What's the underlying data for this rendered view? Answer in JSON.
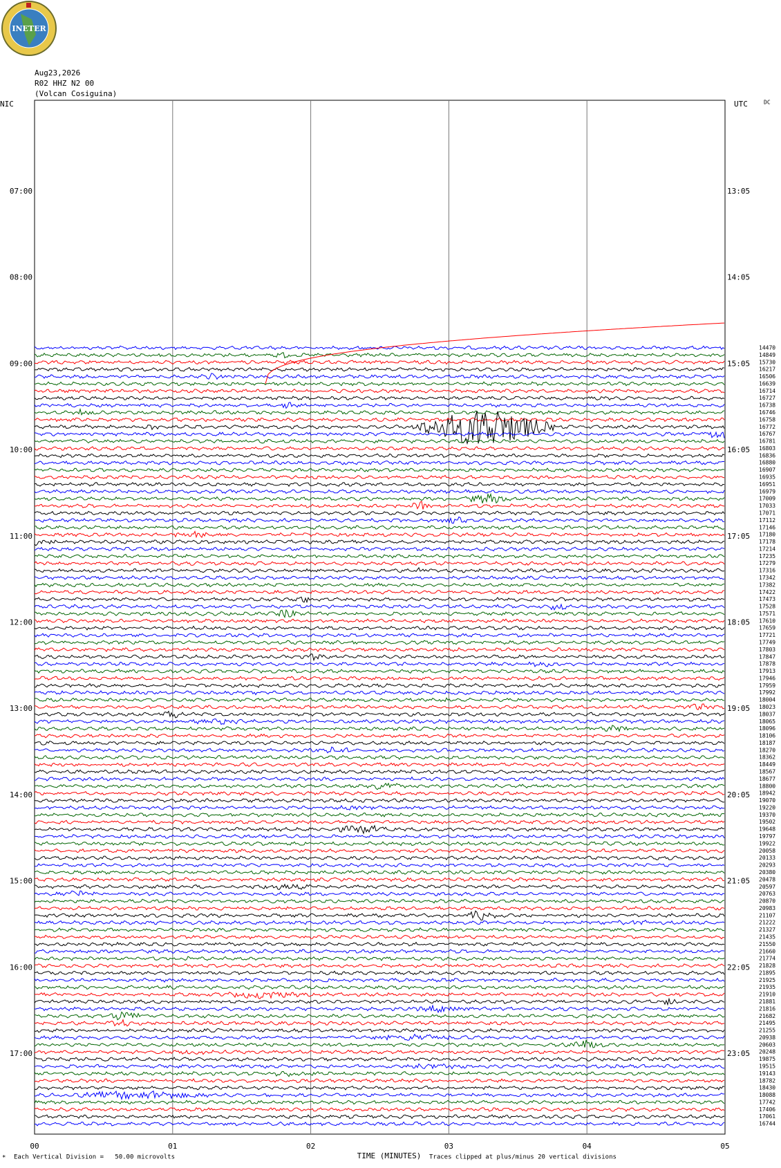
{
  "logo": {
    "text": "INETER"
  },
  "header": {
    "date": "Aug23,2026",
    "station": "R02 HHZ N2 00",
    "location": "(Volcan Cosiguina)"
  },
  "axis": {
    "left_title": "NIC",
    "right_title": "UTC",
    "dc_title": "DC",
    "left_hours": [
      "07:00",
      "08:00",
      "09:00",
      "10:00",
      "11:00",
      "12:00",
      "13:00",
      "14:00",
      "15:00",
      "16:00",
      "17:00"
    ],
    "right_hours": [
      "13:05",
      "14:05",
      "15:05",
      "16:05",
      "17:05",
      "18:05",
      "19:05",
      "20:05",
      "21:05",
      "22:05",
      "23:05"
    ],
    "x_ticks": [
      "00",
      "01",
      "02",
      "03",
      "04",
      "05"
    ],
    "x_title": "TIME (MINUTES)"
  },
  "dc_offsets": [
    14470,
    14849,
    15730,
    16217,
    16506,
    16639,
    16714,
    16727,
    16738,
    16746,
    16758,
    16772,
    16767,
    16781,
    16803,
    16836,
    16880,
    16907,
    16935,
    16951,
    16979,
    17009,
    17033,
    17071,
    17112,
    17146,
    17180,
    17178,
    17214,
    17235,
    17279,
    17316,
    17342,
    17382,
    17422,
    17473,
    17528,
    17571,
    17610,
    17659,
    17721,
    17749,
    17803,
    17847,
    17878,
    17913,
    17946,
    17959,
    17992,
    18004,
    18023,
    18037,
    18065,
    18096,
    18106,
    18187,
    18270,
    18362,
    18449,
    18567,
    18677,
    18800,
    18942,
    19070,
    19220,
    19370,
    19502,
    19648,
    19797,
    19922,
    20058,
    20133,
    20293,
    20380,
    20478,
    20597,
    20763,
    20870,
    20983,
    21107,
    21222,
    21327,
    21435,
    21550,
    21660,
    21774,
    21828,
    21895,
    21925,
    21935,
    21910,
    21881,
    21816,
    21682,
    21495,
    21255,
    20938,
    20603,
    20248,
    19875,
    19515,
    19143,
    18782,
    18430,
    18088,
    17742,
    17406,
    17061,
    16744
  ],
  "footer": {
    "scale": "Each Vertical Division =   50.00 microvolts",
    "clip": "Traces clipped at plus/minus 20 vertical divisions"
  }
}
